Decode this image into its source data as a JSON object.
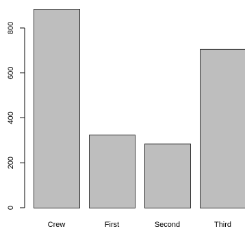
{
  "chart_data": {
    "type": "bar",
    "categories": [
      "Crew",
      "First",
      "Second",
      "Third"
    ],
    "values": [
      885,
      325,
      285,
      706
    ],
    "ylim": [
      0,
      885
    ],
    "yticks": [
      0,
      200,
      400,
      600,
      800
    ],
    "ytick_labels": [
      "0",
      "200",
      "400",
      "600",
      "800"
    ],
    "title": "",
    "xlabel": "",
    "ylabel": "",
    "grid": false,
    "bar_color": "#bebebe",
    "edge_color": "#333333"
  }
}
